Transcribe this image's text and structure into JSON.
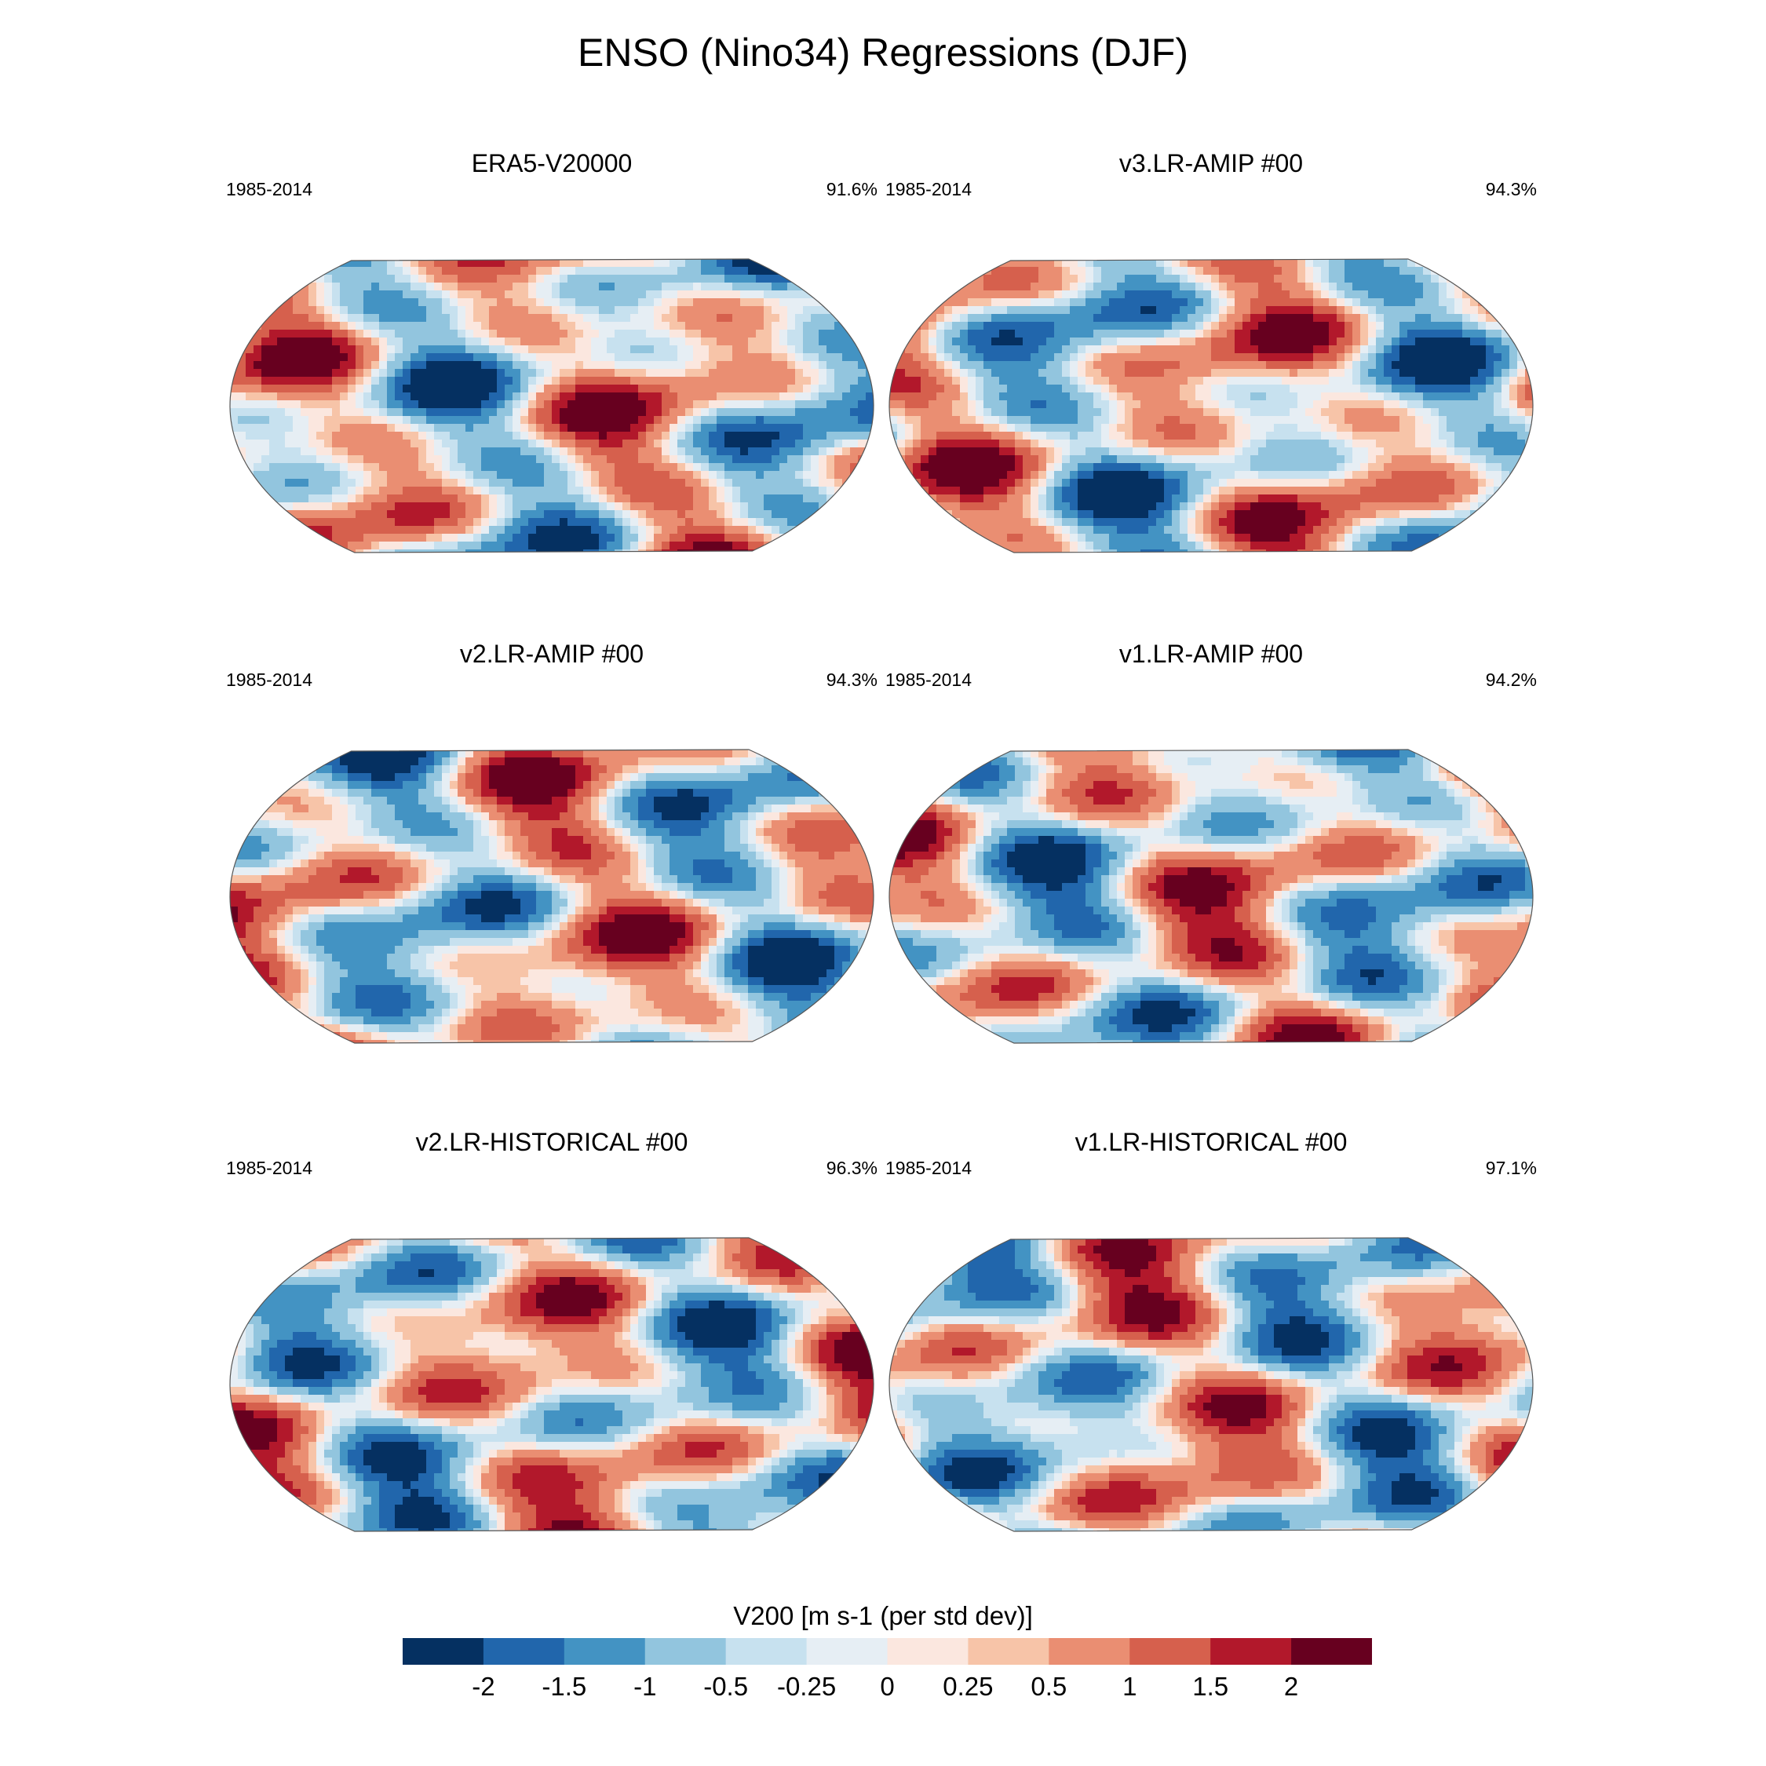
{
  "figure_title": "ENSO (Nino34) Regressions (DJF)",
  "colorbar": {
    "label": "V200 [m s-1 (per std dev)]",
    "colors": [
      "#053061",
      "#2166ac",
      "#4393c3",
      "#92c5de",
      "#c7e1ef",
      "#e6eef4",
      "#fbe7df",
      "#f7c4a8",
      "#ea8e72",
      "#d6604d",
      "#b2182b",
      "#67001f"
    ],
    "ticks": [
      "-2",
      "-1.5",
      "-1",
      "-0.5",
      "-0.25",
      "0",
      "0.25",
      "0.5",
      "1",
      "1.5",
      "2"
    ]
  },
  "panels": [
    {
      "title": "ERA5-V20000",
      "period": "1985-2014",
      "pct": "91.6%"
    },
    {
      "title": "v3.LR-AMIP  #00",
      "period": "1985-2014",
      "pct": "94.3%"
    },
    {
      "title": "v2.LR-AMIP  #00",
      "period": "1985-2014",
      "pct": "94.3%"
    },
    {
      "title": "v1.LR-AMIP  #00",
      "period": "1985-2014",
      "pct": "94.2%"
    },
    {
      "title": "v2.LR-HISTORICAL  #00",
      "period": "1985-2014",
      "pct": "96.3%"
    },
    {
      "title": "v1.LR-HISTORICAL  #00",
      "period": "1985-2014",
      "pct": "97.1%"
    }
  ],
  "chart_data": {
    "type": "heatmap",
    "title": "ENSO (Nino34) Regressions (DJF)",
    "variable": "V200",
    "units": "m s-1 (per std dev)",
    "levels": [
      -2,
      -1.5,
      -1,
      -0.5,
      -0.25,
      0,
      0.25,
      0.5,
      1,
      1.5,
      2
    ],
    "panels": [
      "ERA5-V20000",
      "v3.LR-AMIP  #00",
      "v2.LR-AMIP  #00",
      "v1.LR-AMIP  #00",
      "v2.LR-HISTORICAL  #00",
      "v1.LR-HISTORICAL  #00"
    ],
    "period": "1985-2014",
    "pattern_correlation_pct": [
      "91.6%",
      "94.3%",
      "94.3%",
      "94.2%",
      "96.3%",
      "97.1%"
    ]
  }
}
